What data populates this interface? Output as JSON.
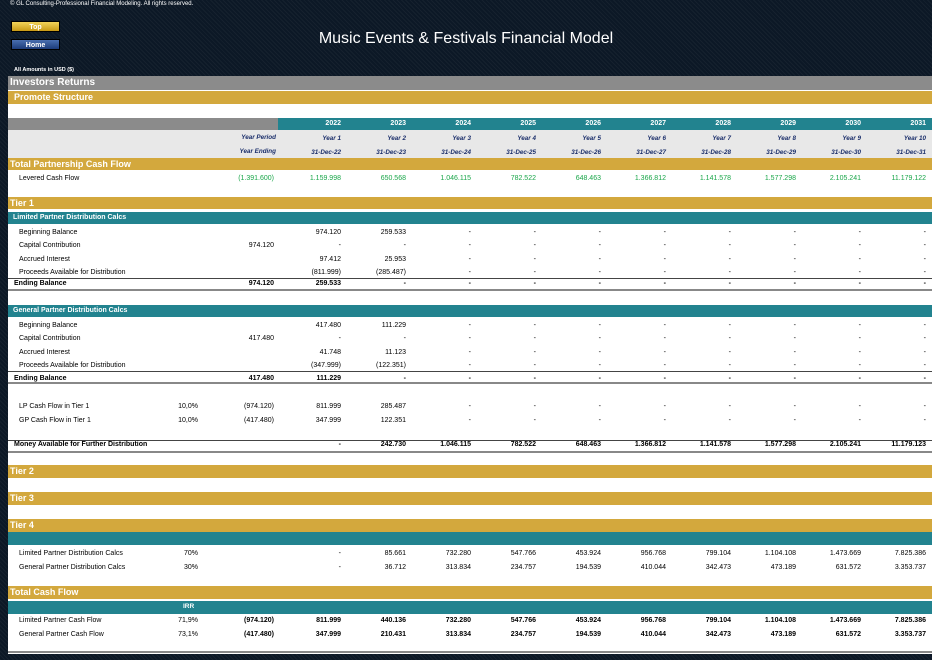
{
  "copyright": "© GL Consulting-Professional Financial Modeling. All rights reserved.",
  "nav": {
    "top": "Top",
    "home": "Home"
  },
  "title": "Music Events & Festivals Financial Model",
  "amounts": "All Amounts in  USD ($)",
  "section": "Investors Returns",
  "subsection": "Promote Structure",
  "header": {
    "years": [
      "2022",
      "2023",
      "2024",
      "2025",
      "2026",
      "2027",
      "2028",
      "2029",
      "2030",
      "2031"
    ],
    "period_label": "Year Period",
    "periods": [
      "Year 1",
      "Year 2",
      "Year 3",
      "Year 4",
      "Year 5",
      "Year 6",
      "Year 7",
      "Year 8",
      "Year 9",
      "Year 10"
    ],
    "ending_label": "Year Ending",
    "endings": [
      "31-Dec-22",
      "31-Dec-23",
      "31-Dec-24",
      "31-Dec-25",
      "31-Dec-26",
      "31-Dec-27",
      "31-Dec-28",
      "31-Dec-29",
      "31-Dec-30",
      "31-Dec-31"
    ]
  },
  "total_pcf": {
    "title": "Total Partnership Cash Flow",
    "row": {
      "label": "Levered Cash Flow",
      "total": "(1.391.600)",
      "values": [
        "1.159.998",
        "650.568",
        "1.046.115",
        "782.522",
        "648.463",
        "1.366.812",
        "1.141.578",
        "1.577.298",
        "2.105.241",
        "11.179.122"
      ]
    }
  },
  "tier1": {
    "title": "Tier 1",
    "lp": {
      "title": "Limited Partner Distribution Calcs",
      "rows": [
        {
          "label": "Beginning Balance",
          "total": "",
          "values": [
            "974.120",
            "259.533",
            "-",
            "-",
            "-",
            "-",
            "-",
            "-",
            "-",
            "-"
          ]
        },
        {
          "label": "Capital Contribution",
          "total": "974.120",
          "values": [
            "-",
            "-",
            "-",
            "-",
            "-",
            "-",
            "-",
            "-",
            "-",
            "-"
          ]
        },
        {
          "label": "Accrued Interest",
          "total": "",
          "values": [
            "97.412",
            "25.953",
            "-",
            "-",
            "-",
            "-",
            "-",
            "-",
            "-",
            "-"
          ]
        },
        {
          "label": "Proceeds Available for Distribution",
          "total": "",
          "values": [
            "(811.999)",
            "(285.487)",
            "-",
            "-",
            "-",
            "-",
            "-",
            "-",
            "-",
            "-"
          ]
        }
      ],
      "ending": {
        "label": "Ending Balance",
        "total": "974.120",
        "values": [
          "259.533",
          "-",
          "-",
          "-",
          "-",
          "-",
          "-",
          "-",
          "-",
          "-"
        ]
      }
    },
    "gp": {
      "title": "General Partner Distribution Calcs",
      "rows": [
        {
          "label": "Beginning Balance",
          "total": "",
          "values": [
            "417.480",
            "111.229",
            "-",
            "-",
            "-",
            "-",
            "-",
            "-",
            "-",
            "-"
          ]
        },
        {
          "label": "Capital Contribution",
          "total": "417.480",
          "values": [
            "-",
            "-",
            "-",
            "-",
            "-",
            "-",
            "-",
            "-",
            "-",
            "-"
          ]
        },
        {
          "label": "Accrued Interest",
          "total": "",
          "values": [
            "41.748",
            "11.123",
            "-",
            "-",
            "-",
            "-",
            "-",
            "-",
            "-",
            "-"
          ]
        },
        {
          "label": "Proceeds Available for Distribution",
          "total": "",
          "values": [
            "(347.999)",
            "(122.351)",
            "-",
            "-",
            "-",
            "-",
            "-",
            "-",
            "-",
            "-"
          ]
        }
      ],
      "ending": {
        "label": "Ending Balance",
        "total": "417.480",
        "values": [
          "111.229",
          "-",
          "-",
          "-",
          "-",
          "-",
          "-",
          "-",
          "-",
          "-"
        ]
      }
    },
    "cf": [
      {
        "label": "LP Cash Flow in Tier 1",
        "pct": "10,0%",
        "total": "(974.120)",
        "values": [
          "811.999",
          "285.487",
          "-",
          "-",
          "-",
          "-",
          "-",
          "-",
          "-",
          "-"
        ]
      },
      {
        "label": "GP Cash Flow in Tier 1",
        "pct": "10,0%",
        "total": "(417.480)",
        "values": [
          "347.999",
          "122.351",
          "-",
          "-",
          "-",
          "-",
          "-",
          "-",
          "-",
          "-"
        ]
      }
    ],
    "money": {
      "label": "Money Available for Further Distribution",
      "total": "",
      "values": [
        "-",
        "242.730",
        "1.046.115",
        "782.522",
        "648.463",
        "1.366.812",
        "1.141.578",
        "1.577.298",
        "2.105.241",
        "11.179.123"
      ]
    }
  },
  "tier2": "Tier 2",
  "tier3": "Tier 3",
  "tier4": {
    "title": "Tier 4",
    "rows": [
      {
        "label": "Limited Partner Distribution Calcs",
        "pct": "70%",
        "total": "",
        "values": [
          "-",
          "85.661",
          "732.280",
          "547.766",
          "453.924",
          "956.768",
          "799.104",
          "1.104.108",
          "1.473.669",
          "7.825.386"
        ]
      },
      {
        "label": "General Partner Distribution Calcs",
        "pct": "30%",
        "total": "",
        "values": [
          "-",
          "36.712",
          "313.834",
          "234.757",
          "194.539",
          "410.044",
          "342.473",
          "473.189",
          "631.572",
          "3.353.737"
        ]
      }
    ]
  },
  "total_cf": {
    "title": "Total Cash Flow",
    "irr_label": "IRR",
    "rows": [
      {
        "label": "Limited Partner Cash Flow",
        "pct": "71,9%",
        "total": "(974.120)",
        "values": [
          "811.999",
          "440.136",
          "732.280",
          "547.766",
          "453.924",
          "956.768",
          "799.104",
          "1.104.108",
          "1.473.669",
          "7.825.386"
        ]
      },
      {
        "label": "General Partner Cash Flow",
        "pct": "73,1%",
        "total": "(417.480)",
        "values": [
          "347.999",
          "210.431",
          "313.834",
          "234.757",
          "194.539",
          "410.044",
          "342.473",
          "473.189",
          "631.572",
          "3.353.737"
        ]
      }
    ]
  },
  "colors": {
    "gold": "#d3a83d",
    "teal": "#22838f",
    "gray": "#8b8b8b",
    "green": "#1aa64a",
    "navy": "#1b2f6b"
  }
}
